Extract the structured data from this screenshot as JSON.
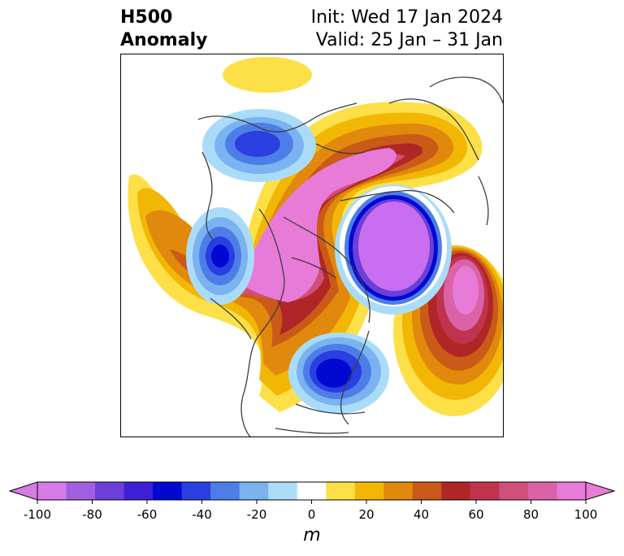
{
  "title": {
    "left_line1": "H500",
    "left_line2": "Anomaly",
    "right_line1": "Init: Wed 17 Jan 2024",
    "right_line2": "Valid: 25 Jan – 31 Jan"
  },
  "colorbar": {
    "unit": "m",
    "min": -100,
    "max": 100,
    "ticks": [
      "-100",
      "-80",
      "-60",
      "-40",
      "-20",
      "0",
      "20",
      "40",
      "60",
      "80",
      "100"
    ],
    "colors": [
      "#d67be8",
      "#a05ee0",
      "#6b3fd8",
      "#3e1fd6",
      "#0008d2",
      "#2a3fe0",
      "#4d7ee8",
      "#7bb3f0",
      "#aadcfa",
      "#ffffff",
      "#fde047",
      "#f2b705",
      "#e0890c",
      "#c95a17",
      "#b02526",
      "#c0334e",
      "#cf4f7a",
      "#db62a6",
      "#e87ad8"
    ]
  }
}
